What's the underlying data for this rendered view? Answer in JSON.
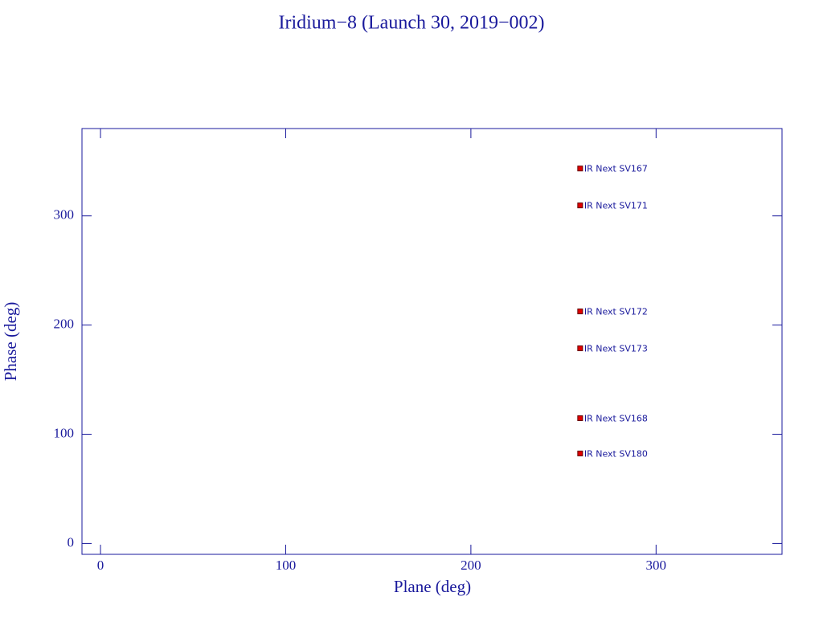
{
  "chart_data": {
    "type": "scatter",
    "title": "Iridium−8 (Launch 30, 2019−002)",
    "x_label": "Plane (deg)",
    "y_label": "Phase (deg)",
    "series": [
      {
        "color": "#e00000",
        "x": [
          259,
          259,
          259,
          259,
          259,
          259
        ],
        "values": [
          343.4,
          309.6,
          212.5,
          178.7,
          114.7,
          82.4
        ],
        "labels": [
          "IR Next SV167",
          "IR Next SV171",
          "IR Next SV172",
          "IR Next SV173",
          "IR Next SV168",
          "IR Next SV180"
        ]
      }
    ],
    "xlim": [
      -10,
      368
    ],
    "xticks": [
      0,
      100,
      200,
      300
    ],
    "ylim": [
      -10,
      380
    ],
    "yticks": [
      0,
      100,
      200,
      300
    ],
    "axis_color": "#1a1a9c"
  }
}
